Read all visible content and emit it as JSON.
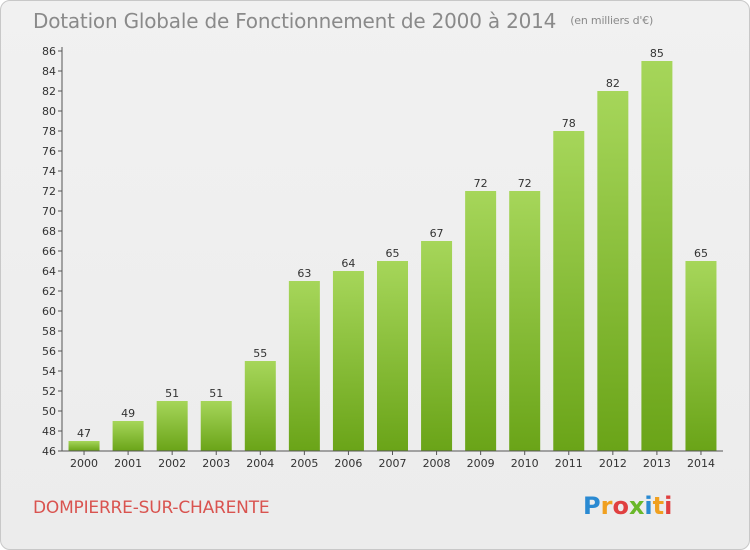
{
  "header": {
    "title": "Dotation Globale de Fonctionnement de 2000 à 2014",
    "unit": "(en milliers d'€)"
  },
  "footer": {
    "city": "DOMPIERRE-SUR-CHARENTE",
    "brand": "Proxiti",
    "brand_letters": [
      {
        "ch": "P",
        "color": "#2a8ad2"
      },
      {
        "ch": "r",
        "color": "#f0a020"
      },
      {
        "ch": "o",
        "color": "#e04040"
      },
      {
        "ch": "x",
        "color": "#6ab82a"
      },
      {
        "ch": "i",
        "color": "#2a8ad2"
      },
      {
        "ch": "t",
        "color": "#f0a020"
      },
      {
        "ch": "i",
        "color": "#e04040"
      }
    ]
  },
  "chart_data": {
    "type": "bar",
    "title": "Dotation Globale de Fonctionnement de 2000 à 2014",
    "subtitle": "(en milliers d'€)",
    "xlabel": "",
    "ylabel": "",
    "categories": [
      "2000",
      "2001",
      "2002",
      "2003",
      "2004",
      "2005",
      "2006",
      "2007",
      "2008",
      "2009",
      "2010",
      "2011",
      "2012",
      "2013",
      "2014"
    ],
    "values": [
      47,
      49,
      51,
      51,
      55,
      63,
      64,
      65,
      67,
      72,
      72,
      78,
      82,
      85,
      65
    ],
    "ylim": [
      46,
      86
    ],
    "yticks": [
      46,
      48,
      50,
      52,
      54,
      56,
      58,
      60,
      62,
      64,
      66,
      68,
      70,
      72,
      74,
      76,
      78,
      80,
      82,
      84,
      86
    ],
    "grid": false,
    "legend": "none",
    "colors": {
      "bar_light": "#a6d65a",
      "bar_dark": "#6aa418",
      "axis": "#555555",
      "text": "#333333"
    }
  }
}
